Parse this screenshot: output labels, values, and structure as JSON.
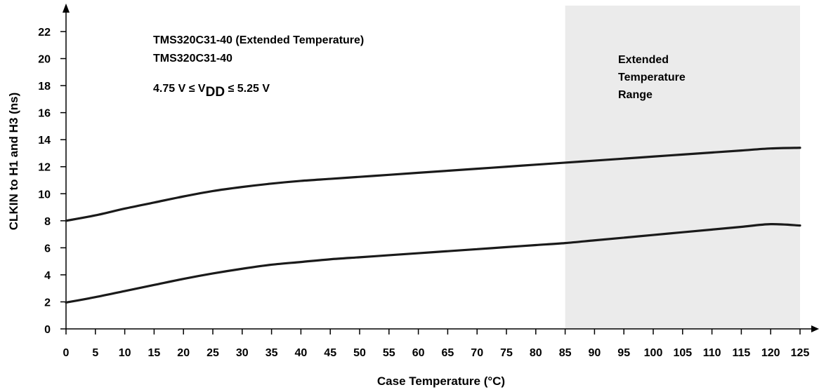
{
  "chart_data": {
    "type": "line",
    "xlabel": "Case Temperature (°C)",
    "ylabel": "CLKIN to H1 and H3 (ns)",
    "xlim": [
      0,
      125
    ],
    "ylim": [
      0,
      24
    ],
    "xticks": [
      0,
      5,
      10,
      15,
      20,
      25,
      30,
      35,
      40,
      45,
      50,
      55,
      60,
      65,
      70,
      75,
      80,
      85,
      90,
      95,
      100,
      105,
      110,
      115,
      120,
      125
    ],
    "yticks": [
      0,
      2,
      4,
      6,
      8,
      10,
      12,
      14,
      16,
      18,
      20,
      22
    ],
    "grid": false,
    "shaded_region": {
      "x_range": [
        85,
        125
      ],
      "color": "#ebebeb",
      "label_lines": [
        "Extended",
        "Temperature",
        "Range"
      ]
    },
    "annotations": {
      "line1": "TMS320C31-40 (Extended Temperature)",
      "line2": "TMS320C31-40",
      "condition": {
        "prefix": "4.75 V ≤ V",
        "subscript": "DD",
        "suffix": " ≤ 5.25 V"
      }
    },
    "series": [
      {
        "color": "#1a1a1a",
        "x": [
          0,
          5,
          10,
          15,
          20,
          25,
          30,
          35,
          40,
          45,
          50,
          55,
          60,
          65,
          70,
          75,
          80,
          85,
          90,
          95,
          100,
          105,
          110,
          115,
          120,
          125
        ],
        "y": [
          8.0,
          8.4,
          8.9,
          9.35,
          9.8,
          10.2,
          10.5,
          10.75,
          10.95,
          11.1,
          11.25,
          11.4,
          11.55,
          11.7,
          11.85,
          12.0,
          12.15,
          12.3,
          12.45,
          12.6,
          12.75,
          12.9,
          13.05,
          13.2,
          13.35,
          13.4
        ]
      },
      {
        "color": "#1a1a1a",
        "x": [
          0,
          5,
          10,
          15,
          20,
          25,
          30,
          35,
          40,
          45,
          50,
          55,
          60,
          65,
          70,
          75,
          80,
          85,
          90,
          95,
          100,
          105,
          110,
          115,
          120,
          125
        ],
        "y": [
          1.95,
          2.35,
          2.8,
          3.25,
          3.7,
          4.1,
          4.45,
          4.75,
          4.95,
          5.15,
          5.3,
          5.45,
          5.6,
          5.75,
          5.9,
          6.05,
          6.2,
          6.35,
          6.55,
          6.75,
          6.95,
          7.15,
          7.35,
          7.55,
          7.75,
          7.65
        ]
      }
    ]
  }
}
